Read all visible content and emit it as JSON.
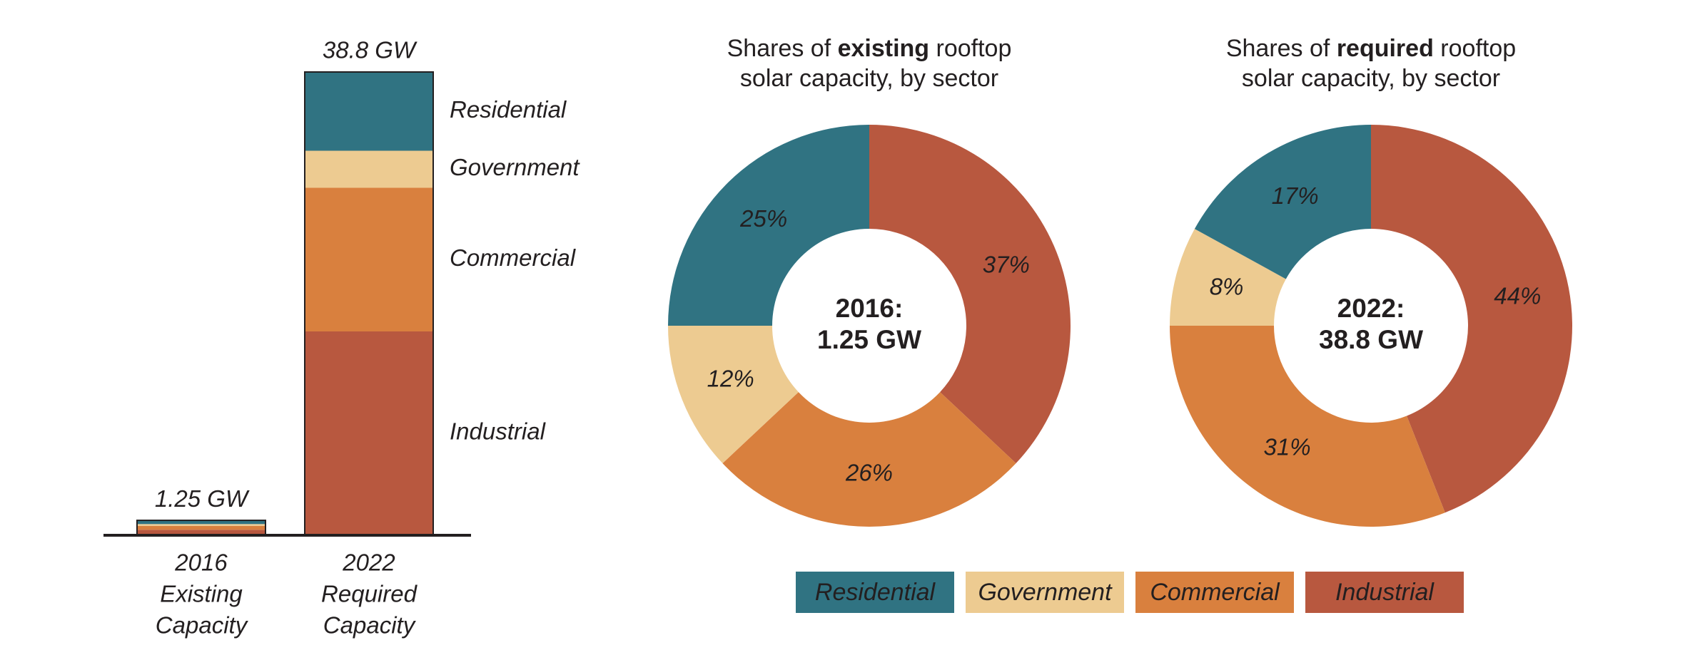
{
  "colors": {
    "Residential": "#307382",
    "Government": "#edcb91",
    "Commercial": "#d9803e",
    "Industrial": "#b8583f",
    "axis": "#231f20"
  },
  "chart_data": [
    {
      "type": "bar",
      "stacked": true,
      "categories": [
        {
          "label": [
            "2016",
            "Existing",
            "Capacity"
          ],
          "total_label": "1.25 GW",
          "total": 1.25
        },
        {
          "label": [
            "2022",
            "Required",
            "Capacity"
          ],
          "total_label": "38.8 GW",
          "total": 38.8
        }
      ],
      "series": [
        {
          "name": "Industrial",
          "values": [
            0.4625,
            17.072
          ]
        },
        {
          "name": "Commercial",
          "values": [
            0.325,
            12.028
          ]
        },
        {
          "name": "Government",
          "values": [
            0.15,
            3.104
          ]
        },
        {
          "name": "Residential",
          "values": [
            0.3125,
            6.596
          ]
        }
      ],
      "series_labels": [
        "Residential",
        "Government",
        "Commercial",
        "Industrial"
      ],
      "ylim": [
        0,
        38.8
      ]
    },
    {
      "type": "pie",
      "style": "donut",
      "title_parts": [
        "Shares of ",
        "existing",
        " rooftop"
      ],
      "title_line2": "solar capacity, by sector",
      "center_lines": [
        "2016:",
        "1.25 GW"
      ],
      "slices": [
        {
          "name": "Industrial",
          "value": 37,
          "label": "37%"
        },
        {
          "name": "Commercial",
          "value": 26,
          "label": "26%"
        },
        {
          "name": "Government",
          "value": 12,
          "label": "12%"
        },
        {
          "name": "Residential",
          "value": 25,
          "label": "25%"
        }
      ]
    },
    {
      "type": "pie",
      "style": "donut",
      "title_parts": [
        "Shares of ",
        "required",
        " rooftop"
      ],
      "title_line2": "solar capacity, by sector",
      "center_lines": [
        "2022:",
        "38.8 GW"
      ],
      "slices": [
        {
          "name": "Industrial",
          "value": 44,
          "label": "44%"
        },
        {
          "name": "Commercial",
          "value": 31,
          "label": "31%"
        },
        {
          "name": "Government",
          "value": 8,
          "label": "8%"
        },
        {
          "name": "Residential",
          "value": 17,
          "label": "17%"
        }
      ]
    }
  ],
  "legend": [
    "Residential",
    "Government",
    "Commercial",
    "Industrial"
  ]
}
